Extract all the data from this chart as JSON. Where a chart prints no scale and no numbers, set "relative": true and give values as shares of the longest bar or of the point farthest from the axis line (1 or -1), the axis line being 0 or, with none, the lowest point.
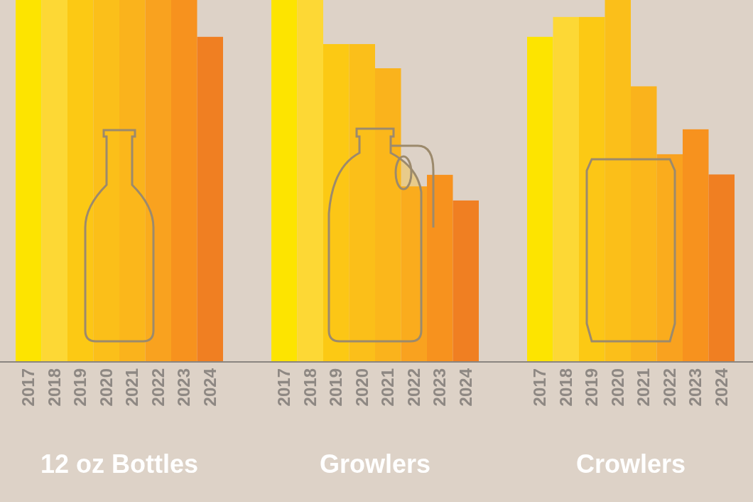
{
  "chart_data": [
    {
      "type": "bar",
      "relative": true,
      "xlabel": "12 oz Bottles",
      "categories": [
        "2017",
        "2018",
        "2019",
        "2020",
        "2021",
        "2022",
        "2023",
        "2024"
      ],
      "values": [
        1,
        1,
        1,
        1,
        1,
        1,
        1,
        0.898
      ],
      "colors": [
        "#fde400",
        "#fdd835",
        "#fcc914",
        "#fbbf1a",
        "#fab31c",
        "#f9a21f",
        "#f7921e",
        "#f07f22"
      ]
    },
    {
      "type": "bar",
      "relative": true,
      "xlabel": "Growlers",
      "categories": [
        "2017",
        "2018",
        "2019",
        "2020",
        "2021",
        "2022",
        "2023",
        "2024"
      ],
      "values": [
        1,
        1,
        0.878,
        0.878,
        0.811,
        0.484,
        0.516,
        0.445
      ],
      "colors": [
        "#fde400",
        "#fdd835",
        "#fcc914",
        "#fbbf1a",
        "#fab31c",
        "#f9a21f",
        "#f7921e",
        "#f07f22"
      ]
    },
    {
      "type": "bar",
      "relative": true,
      "xlabel": "Crowlers",
      "categories": [
        "2017",
        "2018",
        "2019",
        "2020",
        "2021",
        "2022",
        "2023",
        "2024"
      ],
      "values": [
        0.898,
        0.953,
        0.953,
        1,
        0.761,
        0.573,
        0.642,
        0.517
      ],
      "colors": [
        "#fde400",
        "#fdd835",
        "#fcc914",
        "#fbbf1a",
        "#fab31c",
        "#f9a21f",
        "#f7921e",
        "#f07f22"
      ]
    }
  ]
}
